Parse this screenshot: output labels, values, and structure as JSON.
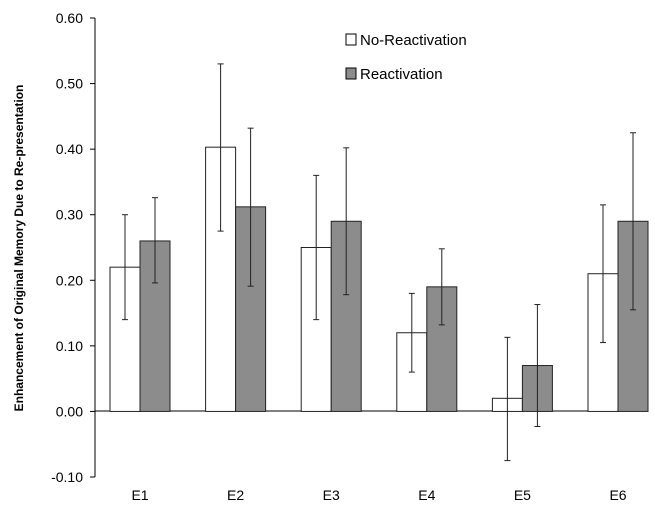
{
  "chart_data": {
    "type": "bar",
    "ylabel": "Enhancement of Original Memory Due to Re-presentation",
    "xlabel": "",
    "title": "",
    "categories": [
      "E1",
      "E2",
      "E3",
      "E4",
      "E5",
      "E6"
    ],
    "ylim": [
      -0.1,
      0.6
    ],
    "yticks": [
      "-0.10",
      "0.00",
      "0.10",
      "0.20",
      "0.30",
      "0.40",
      "0.50",
      "0.60"
    ],
    "legend_position": "top-right",
    "grid": false,
    "series": [
      {
        "name": "No-Reactivation",
        "color": "#ffffff",
        "values": [
          0.22,
          0.403,
          0.25,
          0.12,
          0.02,
          0.21
        ],
        "error_low": [
          0.14,
          0.275,
          0.14,
          0.06,
          -0.075,
          0.105
        ],
        "error_high": [
          0.3,
          0.53,
          0.36,
          0.18,
          0.113,
          0.315
        ]
      },
      {
        "name": "Reactivation",
        "color": "#8c8c8c",
        "values": [
          0.26,
          0.312,
          0.29,
          0.19,
          0.07,
          0.29
        ],
        "error_low": [
          0.196,
          0.191,
          0.178,
          0.132,
          -0.023,
          0.155
        ],
        "error_high": [
          0.326,
          0.432,
          0.402,
          0.248,
          0.163,
          0.425
        ]
      }
    ]
  }
}
